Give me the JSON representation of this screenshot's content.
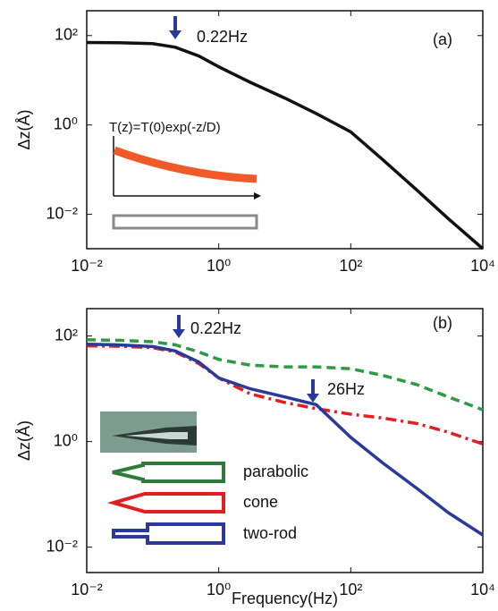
{
  "chart_data": [
    {
      "type": "line",
      "x_log": true,
      "y_log": true,
      "ylabel": "Δz(Å)",
      "annotations": [
        "0.22Hz",
        "(a)",
        "T(z)=T(0)exp(-z/D)"
      ],
      "x": [
        0.01,
        0.03,
        0.1,
        0.22,
        0.5,
        1,
        3,
        10,
        30,
        100,
        300,
        1000,
        3000,
        10000
      ],
      "values": [
        70,
        69,
        66,
        55,
        35,
        20,
        9,
        4,
        1.8,
        0.7,
        0.17,
        0.035,
        0.008,
        0.0017
      ],
      "color": "#111111",
      "line_style": "solid",
      "xlim": [
        0.01,
        10000
      ],
      "ylim": [
        0.0017,
        360
      ],
      "xticks": [
        {
          "value": 0.01,
          "label": "10⁻²"
        },
        {
          "value": 1,
          "label": "10⁰"
        },
        {
          "value": 100,
          "label": "10²"
        },
        {
          "value": 10000,
          "label": "10⁴"
        }
      ],
      "yticks": [
        {
          "value": 0.01,
          "label": "10⁻²"
        },
        {
          "value": 1,
          "label": "10⁰"
        },
        {
          "value": 100,
          "label": "10²"
        }
      ]
    },
    {
      "type": "line",
      "x_log": true,
      "y_log": true,
      "ylabel": "Δz(Å)",
      "xlabel": "Frequency(Hz)",
      "annotations": [
        "0.22Hz",
        "26Hz",
        "(b)"
      ],
      "x": [
        0.01,
        0.03,
        0.1,
        0.22,
        0.5,
        1,
        3,
        10,
        30,
        100,
        300,
        1000,
        3000,
        10000
      ],
      "series": [
        {
          "name": "parabolic",
          "color": "#2e9a44",
          "line_style": "dashed",
          "values": [
            85,
            83,
            78,
            68,
            50,
            36,
            28,
            26,
            26,
            24,
            18,
            12,
            7,
            4
          ]
        },
        {
          "name": "cone",
          "color": "#e02020",
          "line_style": "dashdot",
          "values": [
            65,
            64,
            60,
            50,
            30,
            16,
            8,
            5.5,
            4.2,
            3.3,
            2.8,
            2.2,
            1.5,
            0.9
          ]
        },
        {
          "name": "two-rod",
          "color": "#2a3a9a",
          "line_style": "solid",
          "values": [
            70,
            68,
            63,
            52,
            32,
            16,
            10,
            7,
            5,
            1.2,
            0.4,
            0.13,
            0.045,
            0.017
          ]
        }
      ],
      "xlim": [
        0.01,
        10000
      ],
      "ylim": [
        0.0033,
        330
      ],
      "xticks": [
        {
          "value": 0.01,
          "label": "10⁻²"
        },
        {
          "value": 1,
          "label": "10⁰"
        },
        {
          "value": 100,
          "label": "10²"
        },
        {
          "value": 10000,
          "label": "10⁴"
        }
      ],
      "yticks": [
        {
          "value": 0.01,
          "label": "10⁻²"
        },
        {
          "value": 1,
          "label": "10⁰"
        },
        {
          "value": 100,
          "label": "10²"
        }
      ]
    }
  ]
}
